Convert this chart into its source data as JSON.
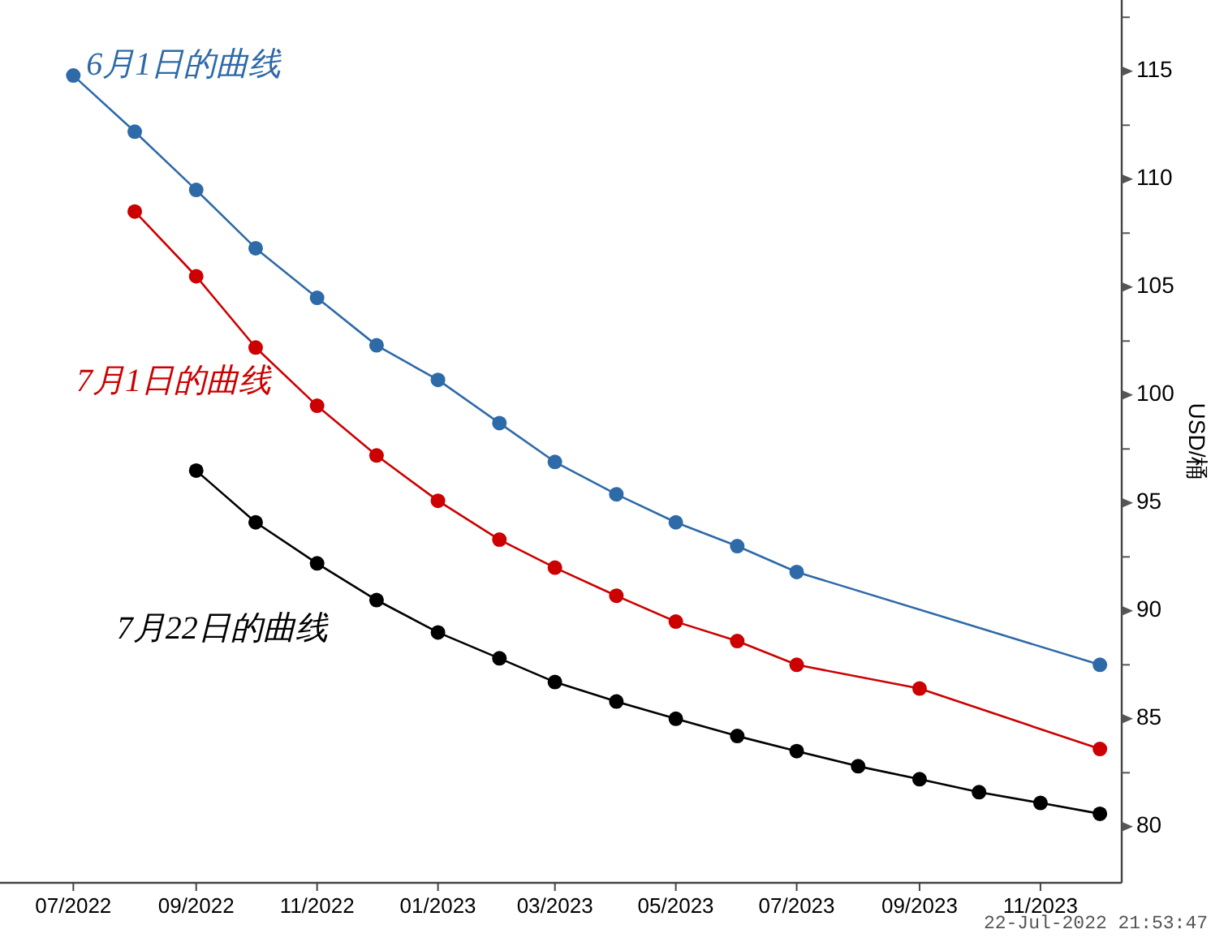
{
  "chart_data": {
    "type": "line",
    "ylabel": "USD/桶",
    "marker": "circle",
    "xlim": [
      "2022-05-25",
      "2023-12-12"
    ],
    "xticks": [
      {
        "value": "2022-07",
        "label": "07/2022"
      },
      {
        "value": "2022-09",
        "label": "09/2022"
      },
      {
        "value": "2022-11",
        "label": "11/2022"
      },
      {
        "value": "2023-01",
        "label": "01/2023"
      },
      {
        "value": "2023-03",
        "label": "03/2023"
      },
      {
        "value": "2023-05",
        "label": "05/2023"
      },
      {
        "value": "2023-07",
        "label": "07/2023"
      },
      {
        "value": "2023-09",
        "label": "09/2023"
      },
      {
        "value": "2023-11",
        "label": "11/2023"
      }
    ],
    "ylim": [
      77.4,
      118.3
    ],
    "yticks": [
      80,
      {
        "value": 82.5,
        "label": null
      },
      85,
      {
        "value": 87.5,
        "label": null
      },
      90,
      {
        "value": 92.5,
        "label": null
      },
      95,
      {
        "value": 97.5,
        "label": null
      },
      100,
      {
        "value": 102.5,
        "label": null
      },
      105,
      {
        "value": 107.5,
        "label": null
      },
      110,
      {
        "value": 112.5,
        "label": null
      },
      115,
      {
        "value": 117.5,
        "label": null
      }
    ],
    "series": [
      {
        "name": "6月1日的曲线",
        "color": "#2e6aa8",
        "x": [
          "2022-07",
          "2022-08",
          "2022-09",
          "2022-10",
          "2022-11",
          "2022-12",
          "2023-01",
          "2023-02",
          "2023-03",
          "2023-04",
          "2023-05",
          "2023-06",
          "2023-07",
          "2023-12"
        ],
        "values": [
          114.8,
          112.2,
          109.5,
          106.8,
          104.5,
          102.3,
          100.7,
          98.7,
          96.9,
          95.4,
          94.1,
          93.0,
          91.8,
          87.5
        ]
      },
      {
        "name": "7月1日的曲线",
        "color": "#cc0000",
        "x": [
          "2022-08",
          "2022-09",
          "2022-10",
          "2022-11",
          "2022-12",
          "2023-01",
          "2023-02",
          "2023-03",
          "2023-04",
          "2023-05",
          "2023-06",
          "2023-07",
          "2023-09",
          "2023-12"
        ],
        "values": [
          108.5,
          105.5,
          102.2,
          99.5,
          97.2,
          95.1,
          93.3,
          92.0,
          90.7,
          89.5,
          88.6,
          87.5,
          86.4,
          83.6
        ]
      },
      {
        "name": "7月22日的曲线",
        "color": "#000000",
        "x": [
          "2022-09",
          "2022-10",
          "2022-11",
          "2022-12",
          "2023-01",
          "2023-02",
          "2023-03",
          "2023-04",
          "2023-05",
          "2023-06",
          "2023-07",
          "2023-08",
          "2023-09",
          "2023-10",
          "2023-11",
          "2023-12"
        ],
        "values": [
          96.5,
          94.1,
          92.2,
          90.5,
          89.0,
          87.8,
          86.7,
          85.8,
          85.0,
          84.2,
          83.5,
          82.8,
          82.2,
          81.6,
          81.1,
          80.6
        ]
      }
    ],
    "annotations": [
      "22-Jul-2022 21:53:47"
    ]
  }
}
